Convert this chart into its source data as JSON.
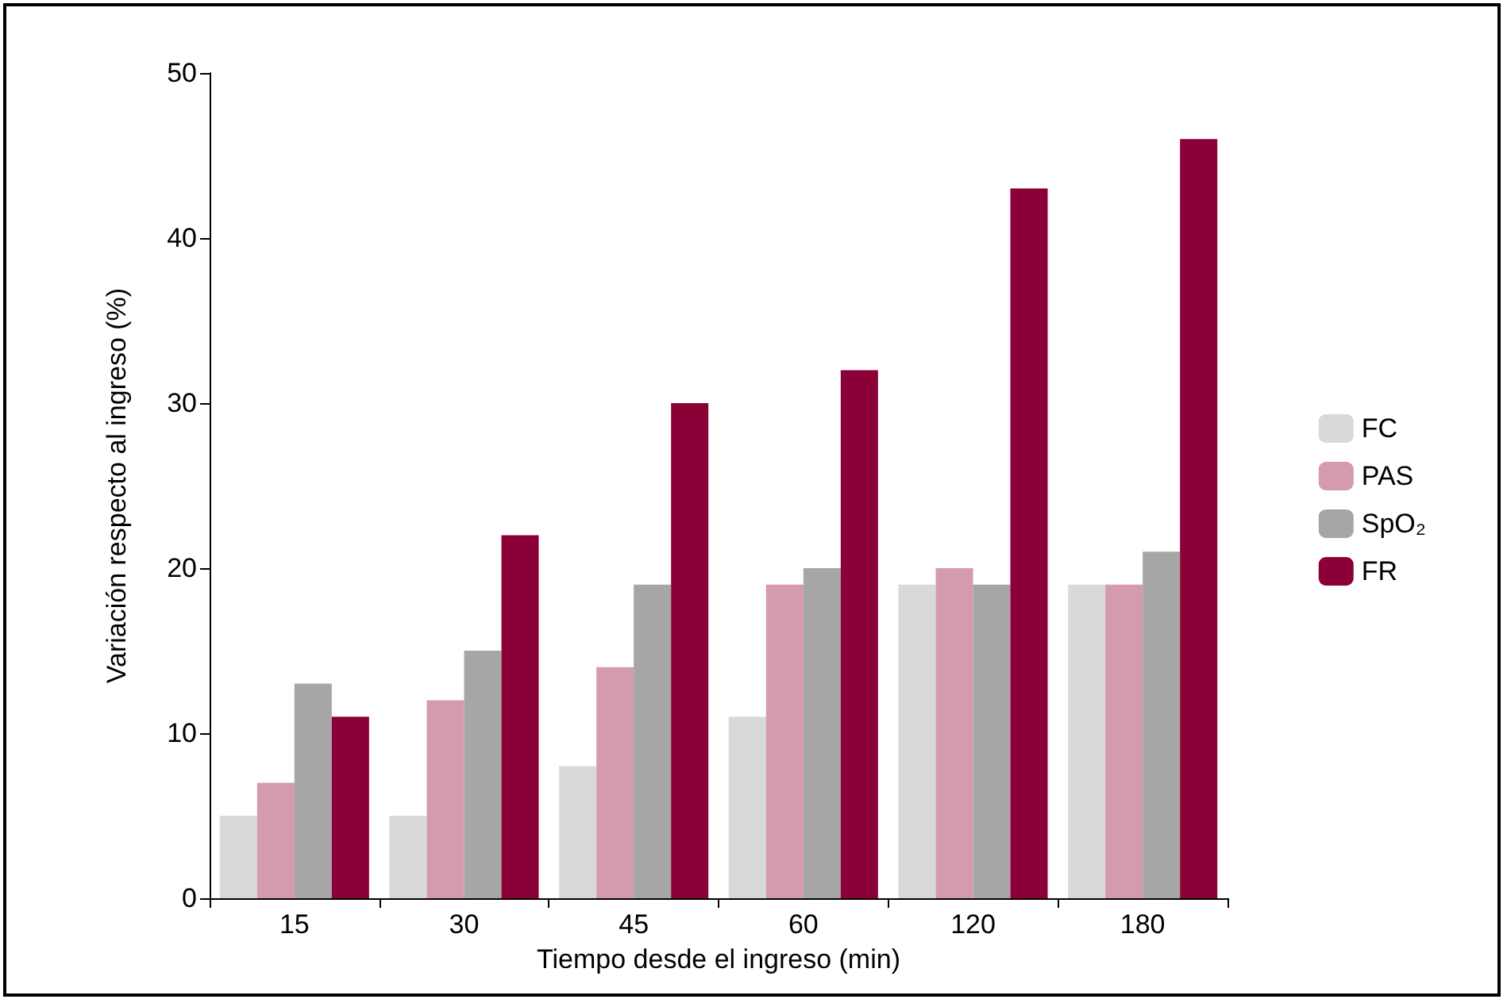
{
  "chart_data": {
    "type": "bar",
    "xlabel": "Tiempo desde el ingreso (min)",
    "ylabel": "Variación respecto al ingreso (%)",
    "categories": [
      "15",
      "30",
      "45",
      "60",
      "120",
      "180"
    ],
    "series": [
      {
        "name": "FC",
        "color": "#d9d9d9",
        "values": [
          5,
          5,
          8,
          11,
          19,
          19
        ]
      },
      {
        "name": "PAS",
        "color": "#d49aae",
        "values": [
          7,
          12,
          14,
          19,
          20,
          19
        ]
      },
      {
        "name": "SpO₂",
        "color": "#a6a6a6",
        "values": [
          13,
          15,
          19,
          20,
          19,
          21
        ]
      },
      {
        "name": "FR",
        "color": "#8b0037",
        "values": [
          11,
          22,
          30,
          32,
          43,
          46
        ]
      }
    ],
    "ylim": [
      0,
      50
    ],
    "yticks": [
      0,
      10,
      20,
      30,
      40,
      50
    ],
    "grid": false,
    "legend": "right"
  }
}
